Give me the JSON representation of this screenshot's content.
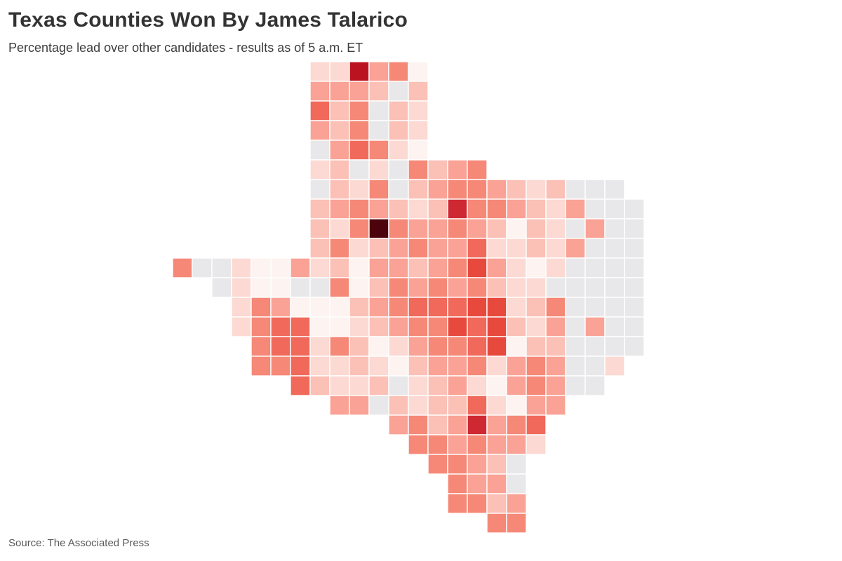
{
  "header": {
    "title": "Texas Counties Won By James Talarico",
    "subtitle": "Percentage lead over other candidates - results as of 5 a.m. ET"
  },
  "footer": {
    "source": "Source: The Associated Press"
  },
  "colors": {
    "background": "#ffffff",
    "title_text": "#333333",
    "subtitle_text": "#3d3d3d",
    "source_text": "#595959",
    "county_border": "#ffffff"
  },
  "chart_data": {
    "type": "choropleth",
    "region": "Texas counties",
    "metric": "Percentage lead over other candidates",
    "title": "Texas Counties Won By James Talarico",
    "legend_visible": false,
    "palette": {
      "a": "#fdf3f1",
      "b": "#fcd9d2",
      "c": "#fbc0b6",
      "d": "#f9a295",
      "e": "#f58877",
      "f": "#f0695a",
      "g": "#e8493d",
      "h": "#ce2832",
      "i": "#bb1420",
      "j": "#4d030c",
      "x": "#e8e8ea"
    },
    "palette_meaning": {
      "a": "smallest lead",
      "j": "largest lead",
      "x": "county not won / no lead (gray)"
    },
    "cell_size": 28,
    "origin": [
      246,
      88
    ],
    "grid": [
      ".......bbidea...........",
      ".......dddcxc...........",
      ".......fcexcb...........",
      ".......dcexcb...........",
      ".......xdfeba...........",
      ".......bcxbxecde........",
      ".......xcbexcdeedcbcxxx.",
      ".......cdedcbcheedcbdxxx",
      ".......cbejeddedcacbxdxx",
      ".......cebcdeddfbbcbdxxx",
      "exxbaadbcaddcdegdbabxxxx",
      "..xbaaxxeacededecbbxxxxx",
      "...bedaaacdefffggbcexxxx",
      "...beffaabcdeegfgcbdxdxx",
      "....effbecabdeefgaccxxxx",
      "....eefbbcbacddebdedxxb.",
      "......fcbbcxbcdbadedxx..",
      "........ddxcbccfbadd....",
      "...........decdhdef.....",
      "............eededdb.....",
      ".............eedcx......",
      "..............eddx......",
      "..............eecd......",
      "................ee......"
    ]
  }
}
